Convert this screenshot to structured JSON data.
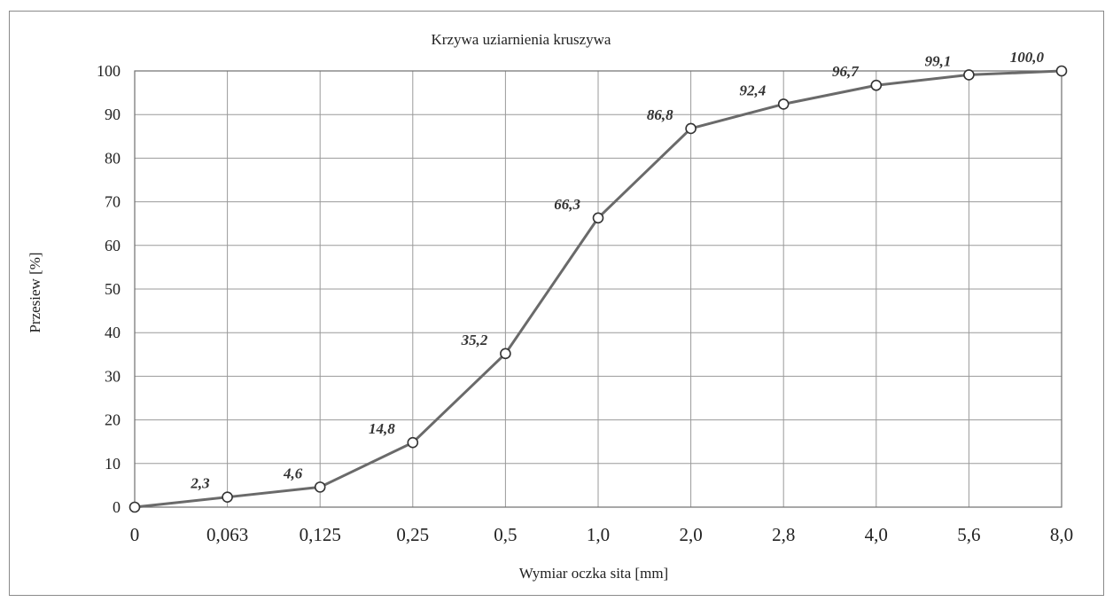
{
  "chart_data": {
    "type": "line",
    "title": "Krzywa uziarnienia kruszywa",
    "xlabel": "Wymiar oczka sita  [mm]",
    "ylabel": "Przesiew [%]",
    "categories": [
      "0",
      "0,063",
      "0,125",
      "0,25",
      "0,5",
      "1,0",
      "2,0",
      "2,8",
      "4,0",
      "5,6",
      "8,0"
    ],
    "values": [
      0,
      2.3,
      4.6,
      14.8,
      35.2,
      66.3,
      86.8,
      92.4,
      96.7,
      99.1,
      100.0
    ],
    "data_labels": [
      "",
      "2,3",
      "4,6",
      "14,8",
      "35,2",
      "66,3",
      "86,8",
      "92,4",
      "96,7",
      "99,1",
      "100,0"
    ],
    "ylim": [
      0,
      100
    ],
    "yticks": [
      "0",
      "10",
      "20",
      "30",
      "40",
      "50",
      "60",
      "70",
      "80",
      "90",
      "100"
    ],
    "grid": true,
    "colors": {
      "line": "#6a6a6a",
      "grid": "#9a9a9a"
    }
  }
}
